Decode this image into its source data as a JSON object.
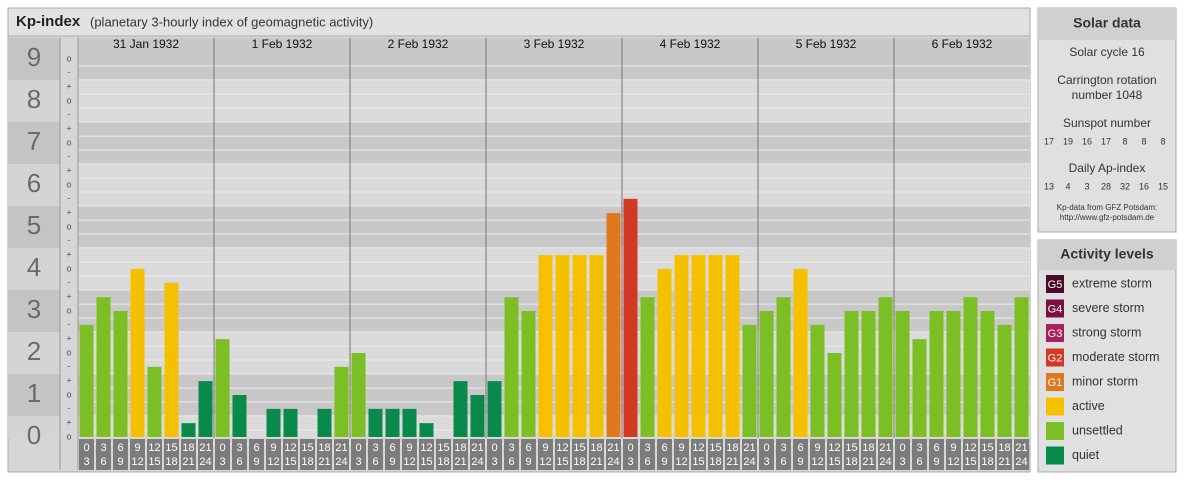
{
  "chart_data": {
    "type": "bar",
    "title": "Kp-index",
    "subtitle": "(planetary 3-hourly index of geomagnetic activity)",
    "days": [
      "31 Jan 1932",
      "1 Feb 1932",
      "2 Feb 1932",
      "3 Feb 1932",
      "4 Feb 1932",
      "5 Feb 1932",
      "6 Feb 1932"
    ],
    "hours": [
      0,
      3,
      6,
      9,
      12,
      15,
      18,
      21,
      24
    ],
    "values": [
      2.67,
      3.33,
      3,
      4,
      1.67,
      3.67,
      0.33,
      1.33,
      2.33,
      1,
      0,
      0.67,
      0.67,
      0,
      0.67,
      1.67,
      2,
      0.67,
      0.67,
      0.67,
      0.33,
      0,
      1.33,
      1,
      1.33,
      3.33,
      3,
      4.33,
      4.33,
      4.33,
      4.33,
      5.33,
      5.67,
      3.33,
      4,
      4.33,
      4.33,
      4.33,
      4.33,
      2.67,
      3,
      3.33,
      4,
      2.67,
      2,
      3,
      3,
      3.33,
      3,
      2.33,
      3,
      3,
      3.33,
      3,
      2.67,
      3.33
    ],
    "colors": [
      "#7cbf25",
      "#7cbf25",
      "#7cbf25",
      "#f5c000",
      "#7cbf25",
      "#f5c000",
      "#0a8a4a",
      "#0a8a4a",
      "#7cbf25",
      "#0a8a4a",
      "#0a8a4a",
      "#0a8a4a",
      "#0a8a4a",
      "#0a8a4a",
      "#0a8a4a",
      "#7cbf25",
      "#7cbf25",
      "#0a8a4a",
      "#0a8a4a",
      "#0a8a4a",
      "#0a8a4a",
      "#0a8a4a",
      "#0a8a4a",
      "#0a8a4a",
      "#0a8a4a",
      "#7cbf25",
      "#7cbf25",
      "#f5c000",
      "#f5c000",
      "#f5c000",
      "#f5c000",
      "#e07820",
      "#d03a22",
      "#7cbf25",
      "#f5c000",
      "#f5c000",
      "#f5c000",
      "#f5c000",
      "#f5c000",
      "#7cbf25",
      "#7cbf25",
      "#7cbf25",
      "#f5c000",
      "#7cbf25",
      "#7cbf25",
      "#7cbf25",
      "#7cbf25",
      "#7cbf25",
      "#7cbf25",
      "#7cbf25",
      "#7cbf25",
      "#7cbf25",
      "#7cbf25",
      "#7cbf25",
      "#7cbf25",
      "#7cbf25"
    ],
    "ylim": [
      0,
      9.5
    ],
    "yticks": [
      0,
      1,
      2,
      3,
      4,
      5,
      6,
      7,
      8,
      9
    ],
    "yminorticks": [
      {
        "value": 0,
        "label": "o"
      },
      {
        "value": 0.33,
        "label": "+"
      },
      {
        "value": 0.67,
        "label": "-"
      },
      {
        "value": 1,
        "label": "o"
      },
      {
        "value": 1.33,
        "label": "+"
      },
      {
        "value": 1.67,
        "label": "-"
      },
      {
        "value": 2,
        "label": "o"
      },
      {
        "value": 2.33,
        "label": "+"
      },
      {
        "value": 2.67,
        "label": "-"
      },
      {
        "value": 3,
        "label": "o"
      },
      {
        "value": 3.33,
        "label": "+"
      },
      {
        "value": 3.67,
        "label": "-"
      },
      {
        "value": 4,
        "label": "o"
      },
      {
        "value": 4.33,
        "label": "+"
      },
      {
        "value": 4.67,
        "label": "-"
      },
      {
        "value": 5,
        "label": "o"
      },
      {
        "value": 5.33,
        "label": "+"
      },
      {
        "value": 5.67,
        "label": "-"
      },
      {
        "value": 6,
        "label": "o"
      },
      {
        "value": 6.33,
        "label": "+"
      },
      {
        "value": 6.67,
        "label": "-"
      },
      {
        "value": 7,
        "label": "o"
      },
      {
        "value": 7.33,
        "label": "+"
      },
      {
        "value": 7.67,
        "label": "-"
      },
      {
        "value": 8,
        "label": "o"
      },
      {
        "value": 8.33,
        "label": "+"
      },
      {
        "value": 8.67,
        "label": "-"
      },
      {
        "value": 9,
        "label": "o"
      }
    ],
    "legend_title": "Activity levels",
    "legend": [
      {
        "code": "G5",
        "name": "extreme storm",
        "color": "#4a0a28"
      },
      {
        "code": "G4",
        "name": "severe storm",
        "color": "#7a1040"
      },
      {
        "code": "G3",
        "name": "strong storm",
        "color": "#a8205a"
      },
      {
        "code": "G2",
        "name": "moderate storm",
        "color": "#d03a22"
      },
      {
        "code": "G1",
        "name": "minor storm",
        "color": "#e07820"
      },
      {
        "name": "active",
        "color": "#f5c000"
      },
      {
        "name": "unsettled",
        "color": "#7cbf25"
      },
      {
        "name": "quiet",
        "color": "#0a8a4a"
      }
    ]
  },
  "solar_panel": {
    "title": "Solar data",
    "cycle": "Solar cycle 16",
    "carrington_1": "Carrington rotation",
    "carrington_2": "number 1048",
    "sunspot_title": "Sunspot number",
    "sunspots": [
      17,
      19,
      16,
      17,
      8,
      8,
      8
    ],
    "ap_title": "Daily Ap-index",
    "ap": [
      13,
      4,
      3,
      28,
      32,
      16,
      15
    ],
    "source_1": "Kp-data from GFZ Potsdam:",
    "source_2": "http://www.gfz-potsdam.de"
  }
}
